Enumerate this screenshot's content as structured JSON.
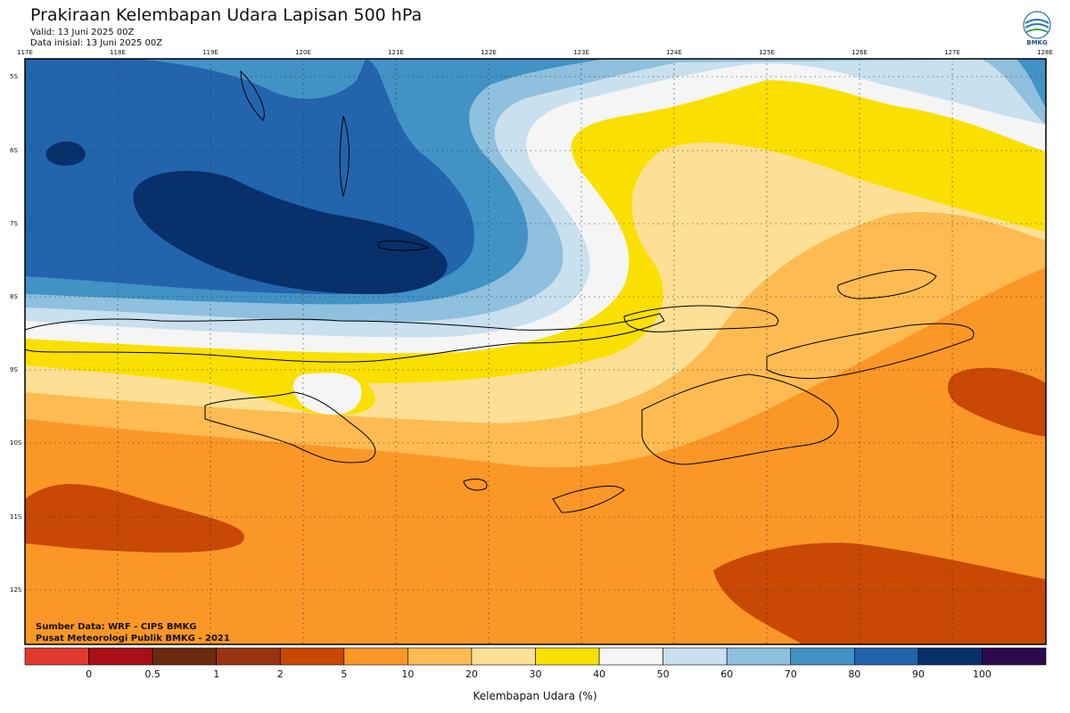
{
  "header": {
    "title": "Prakiraan Kelembapan Udara Lapisan 500 hPa",
    "valid": "Valid: 13 Juni 2025 00Z",
    "initial": "Data inisial: 13 Juni 2025 00Z"
  },
  "logo": {
    "text": "BMKG",
    "icon": "bmkg-logo-icon"
  },
  "footer": {
    "source": "Sumber Data: WRF - CIPS BMKG",
    "center": "Pusat Meteorologi Publik BMKG - 2021"
  },
  "axes": {
    "lon_labels": [
      "117E",
      "118E",
      "119E",
      "120E",
      "121E",
      "122E",
      "123E",
      "124E",
      "125E",
      "126E",
      "127E",
      "128E"
    ],
    "lat_labels": [
      "5S",
      "6S",
      "7S",
      "8S",
      "9S",
      "10S",
      "11S",
      "12S"
    ]
  },
  "colorbar": {
    "title": "Kelembapan Udara (%)",
    "labels": [
      "0",
      "0.5",
      "1",
      "2",
      "5",
      "10",
      "20",
      "30",
      "40",
      "50",
      "60",
      "70",
      "80",
      "90",
      "100"
    ],
    "colors": [
      "#e03a2f",
      "#a81015",
      "#6b2a10",
      "#983410",
      "#c84804",
      "#fb9726",
      "#fdbb52",
      "#fde095",
      "#fae000",
      "#f5f5f5",
      "#c9e0ee",
      "#8fc0dd",
      "#4292c6",
      "#2265ad",
      "#08306b",
      "#2b0a4e"
    ]
  },
  "legend_colors": {
    "c5": "#c84804",
    "c10": "#fb9726",
    "c20": "#fdbb52",
    "c30": "#fde095",
    "c40": "#fae000",
    "c50": "#f5f5f5",
    "c60": "#c9e0ee",
    "c70": "#8fc0dd",
    "c80": "#4292c6",
    "c90": "#2265ad",
    "c100": "#08306b"
  }
}
